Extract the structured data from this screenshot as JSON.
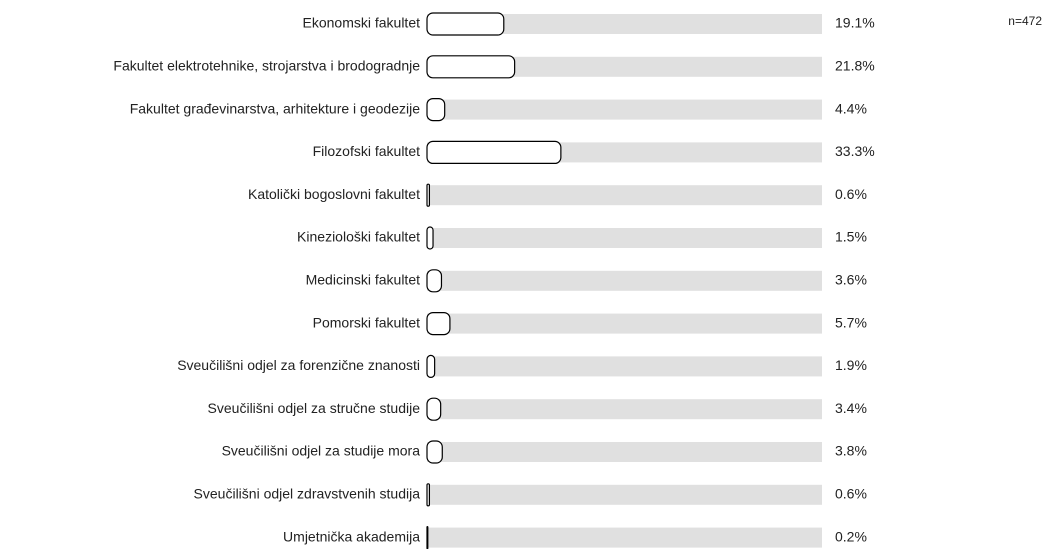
{
  "chart_data": {
    "type": "hbar",
    "annotation": "n=472",
    "categories": [
      "Ekonomski fakultet",
      "Fakultet elektrotehnike, strojarstva i brodogradnje",
      "Fakultet građevinarstva, arhitekture i geodezije",
      "Filozofski fakultet",
      "Katolički bogoslovni fakultet",
      "Kineziološki fakultet",
      "Medicinski fakultet",
      "Pomorski fakultet",
      "Sveučilišni odjel za forenzične znanosti",
      "Sveučilišni odjel za stručne studije",
      "Sveučilišni odjel za studije mora",
      "Sveučilišni odjel zdravstvenih studija",
      "Umjetnička akademija"
    ],
    "values": [
      19.1,
      21.8,
      4.4,
      33.3,
      0.6,
      1.5,
      3.6,
      5.7,
      1.9,
      3.4,
      3.8,
      0.6,
      0.2
    ],
    "value_labels": [
      "19.1%",
      "21.8%",
      "4.4%",
      "33.3%",
      "0.6%",
      "1.5%",
      "3.6%",
      "5.7%",
      "1.9%",
      "3.4%",
      "3.8%",
      "0.6%",
      "0.2%"
    ],
    "xlim": [
      0,
      100
    ],
    "color": "#ffffff",
    "track_color": "#e0e0e0"
  }
}
